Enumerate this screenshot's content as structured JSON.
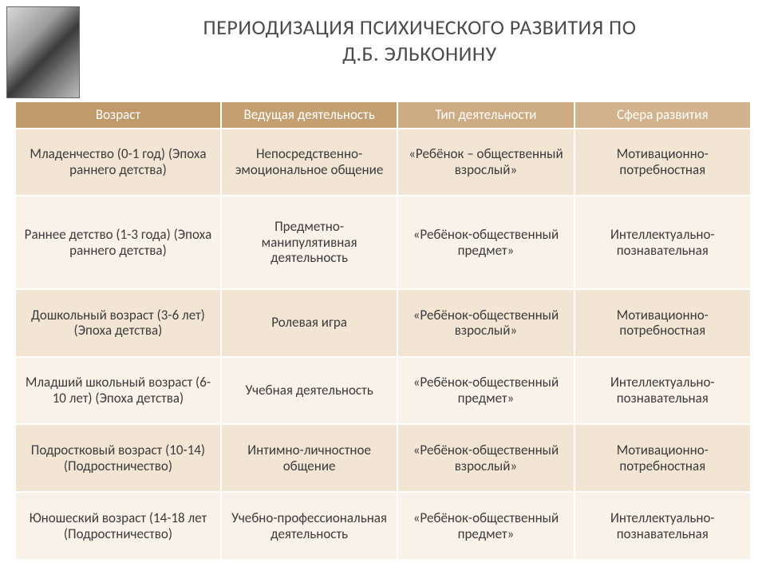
{
  "title_line1": "ПЕРИОДИЗАЦИЯ ПСИХИЧЕСКОГО РАЗВИТИЯ ПО",
  "title_line2": "Д.Б. ЭЛЬКОНИНУ",
  "colors": {
    "header_bg_age": "#c09a6a",
    "header_bg_lead": "#c49f72",
    "header_bg_type": "#ceac83",
    "header_bg_sphere": "#d3b38d",
    "row_odd_bg": "#f3e5d4",
    "row_even_bg": "#f9f2e8",
    "header_text": "#ffffff",
    "cell_text": "#3b3b3b",
    "title_color": "#4a4a4a"
  },
  "table": {
    "columns": [
      {
        "key": "age",
        "label": "Возраст"
      },
      {
        "key": "lead",
        "label": "Ведущая деятельность"
      },
      {
        "key": "type",
        "label": "Тип деятельности"
      },
      {
        "key": "sphere",
        "label": "Сфера развития"
      }
    ],
    "rows": [
      {
        "age": "Младенчество (0-1 год) (Эпоха раннего детства)",
        "lead": "Непосредственно-эмоциональное общение",
        "type": "«Ребёнок – общественный взрослый»",
        "sphere": "Мотивационно-потребностная"
      },
      {
        "age": "Раннее детство (1-3 года) (Эпоха раннего детства)",
        "lead": "Предметно-манипулятивная деятельность",
        "type": "«Ребёнок-общественный предмет»",
        "sphere": "Интеллектуально-познавательная"
      },
      {
        "age": "Дошкольный возраст (3-6 лет)  (Эпоха детства)",
        "lead": "Ролевая игра",
        "type": "«Ребёнок-общественный взрослый»",
        "sphere": "Мотивационно-потребностная"
      },
      {
        "age": "Младший школьный возраст (6-10 лет) (Эпоха детства)",
        "lead": "Учебная деятельность",
        "type": "«Ребёнок-общественный предмет»",
        "sphere": "Интеллектуально-познавательная"
      },
      {
        "age": "Подростковый возраст (10-14)  (Подростничество)",
        "lead": "Интимно-личностное общение",
        "type": "«Ребёнок-общественный взрослый»",
        "sphere": "Мотивационно-потребностная"
      },
      {
        "age": "Юношеский возраст (14-18 лет (Подростничество)",
        "lead": "Учебно-профессиональная деятельность",
        "type": "«Ребёнок-общественный предмет»",
        "sphere": "Интеллектуально-познавательная"
      }
    ]
  }
}
